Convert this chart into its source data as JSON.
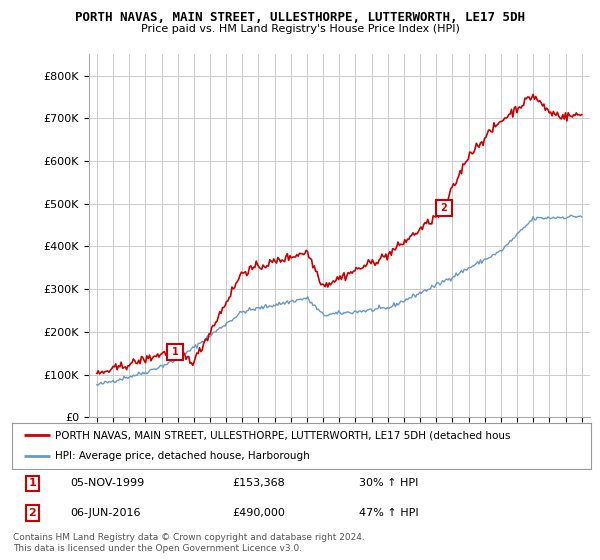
{
  "title": "PORTH NAVAS, MAIN STREET, ULLESTHORPE, LUTTERWORTH, LE17 5DH",
  "subtitle": "Price paid vs. HM Land Registry's House Price Index (HPI)",
  "legend_line1": "PORTH NAVAS, MAIN STREET, ULLESTHORPE, LUTTERWORTH, LE17 5DH (detached hous",
  "legend_line2": "HPI: Average price, detached house, Harborough",
  "transaction1_date": "05-NOV-1999",
  "transaction1_price": "£153,368",
  "transaction1_hpi": "30% ↑ HPI",
  "transaction2_date": "06-JUN-2016",
  "transaction2_price": "£490,000",
  "transaction2_hpi": "47% ↑ HPI",
  "footer": "Contains HM Land Registry data © Crown copyright and database right 2024.\nThis data is licensed under the Open Government Licence v3.0.",
  "red_color": "#cc0000",
  "blue_color": "#6699cc",
  "background_color": "#ffffff",
  "grid_color": "#cccccc",
  "ylim": [
    0,
    850000
  ],
  "yticks": [
    0,
    100000,
    200000,
    300000,
    400000,
    500000,
    600000,
    700000,
    800000
  ]
}
